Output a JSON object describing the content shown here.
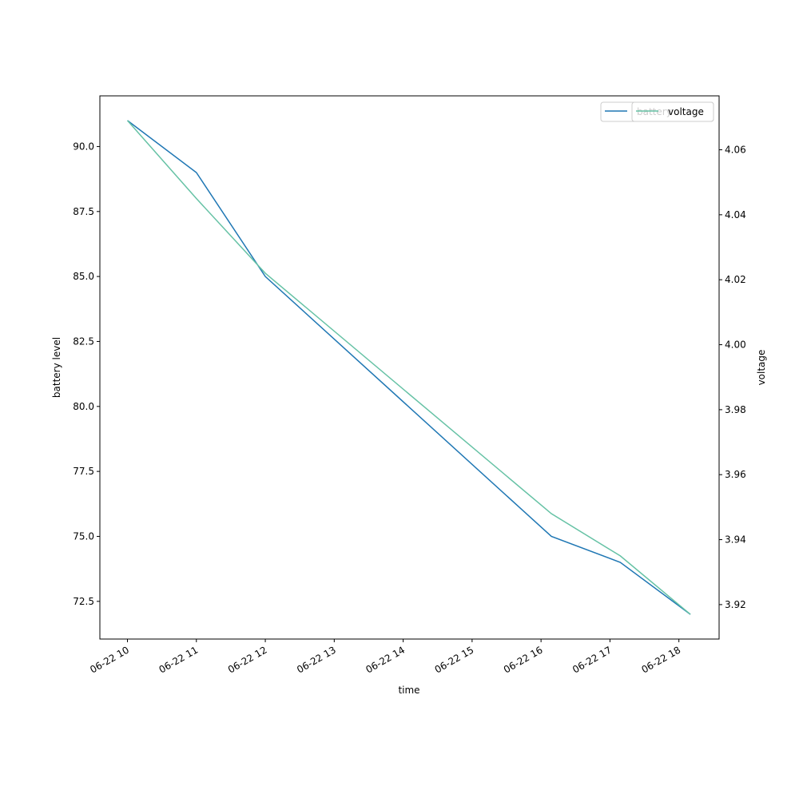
{
  "chart_data": {
    "type": "line",
    "x_label": "time",
    "y_label": "battery level",
    "y2_label": "voltage",
    "x": [
      "06-22 10:00",
      "06-22 11:00",
      "06-22 12:00",
      "06-22 16:09",
      "06-22 17:09",
      "06-22 18:10"
    ],
    "series": [
      {
        "name": "battery",
        "color": "#1f77b4",
        "values": [
          91,
          89,
          85,
          75,
          74,
          72
        ]
      },
      {
        "name": "voltage",
        "color": "#66c2a5",
        "axis": "y2",
        "values": [
          4.069,
          4.045,
          4.022,
          3.948,
          3.935,
          3.917
        ]
      }
    ],
    "xlim": [
      "06-22 09:36",
      "06-22 18:35"
    ],
    "xticks": [
      {
        "value": "06-22 10:00",
        "label": "06-22 10"
      },
      {
        "value": "06-22 11:00",
        "label": "06-22 11"
      },
      {
        "value": "06-22 12:00",
        "label": "06-22 12"
      },
      {
        "value": "06-22 13:00",
        "label": "06-22 13"
      },
      {
        "value": "06-22 14:00",
        "label": "06-22 14"
      },
      {
        "value": "06-22 15:00",
        "label": "06-22 15"
      },
      {
        "value": "06-22 16:00",
        "label": "06-22 16"
      },
      {
        "value": "06-22 17:00",
        "label": "06-22 17"
      },
      {
        "value": "06-22 18:00",
        "label": "06-22 18"
      }
    ],
    "ylim": [
      71.05,
      91.95
    ],
    "yticks": [
      72.5,
      {
        "value": 75,
        "label": "75.0"
      },
      77.5,
      {
        "value": 80,
        "label": "80.0"
      },
      82.5,
      {
        "value": 85,
        "label": "85.0"
      },
      87.5,
      {
        "value": 90,
        "label": "90.0"
      }
    ],
    "y2lim": [
      3.9094,
      4.0766
    ],
    "y2ticks": [
      3.92,
      3.94,
      3.96,
      3.98,
      {
        "value": 4,
        "label": "4.00"
      },
      4.02,
      4.04,
      4.06
    ],
    "legend_loc": "upper right"
  }
}
